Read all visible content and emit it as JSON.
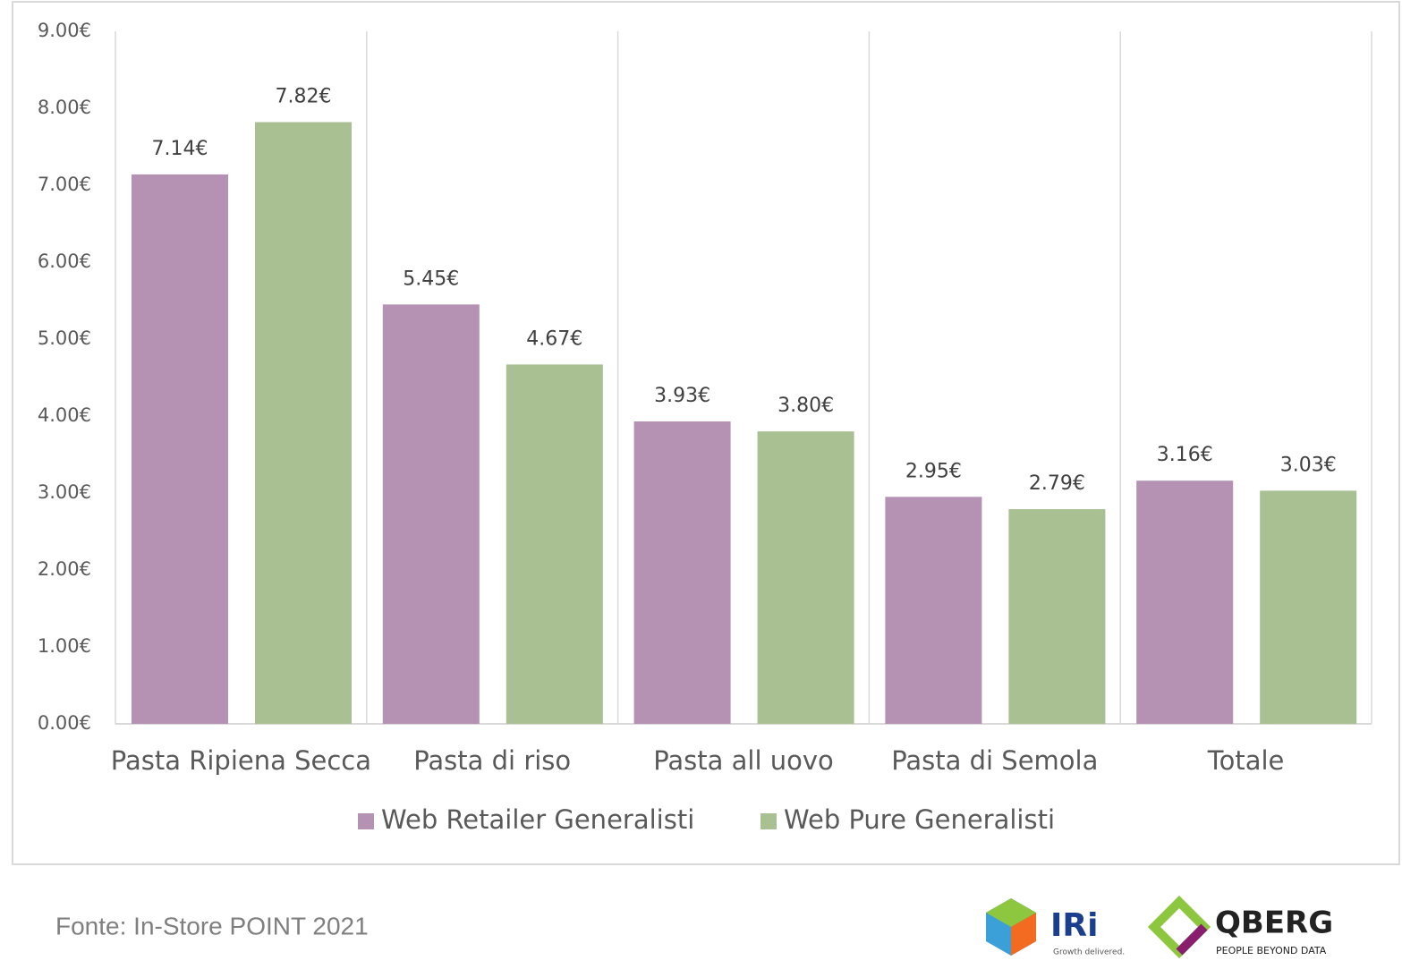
{
  "chart_data": {
    "type": "bar",
    "categories": [
      "Pasta Ripiena Secca",
      "Pasta di riso",
      "Pasta all uovo",
      "Pasta di Semola",
      "Totale"
    ],
    "series": [
      {
        "name": "Web Retailer Generalisti",
        "color": "#b591b3",
        "values": [
          7.14,
          5.45,
          3.93,
          2.95,
          3.16
        ],
        "value_labels": [
          "7.14€",
          "5.45€",
          "3.93€",
          "2.95€",
          "3.16€"
        ]
      },
      {
        "name": "Web Pure Generalisti",
        "color": "#a8c092",
        "values": [
          7.82,
          4.67,
          3.8,
          2.79,
          3.03
        ],
        "value_labels": [
          "7.82€",
          "4.67€",
          "3.80€",
          "2.79€",
          "3.03€"
        ]
      }
    ],
    "ylim": [
      0,
      9
    ],
    "yticks": [
      {
        "value": 0,
        "label": "0.00€"
      },
      {
        "value": 1,
        "label": "1.00€"
      },
      {
        "value": 2,
        "label": "2.00€"
      },
      {
        "value": 3,
        "label": "3.00€"
      },
      {
        "value": 4,
        "label": "4.00€"
      },
      {
        "value": 5,
        "label": "5.00€"
      },
      {
        "value": 6,
        "label": "6.00€"
      },
      {
        "value": 7,
        "label": "7.00€"
      },
      {
        "value": 8,
        "label": "8.00€"
      },
      {
        "value": 9,
        "label": "9.00€"
      }
    ],
    "legend": "bottom",
    "source": "Fonte: In-Store POINT 2021"
  },
  "logos": {
    "iri": "IRi",
    "iri_tagline": "Growth delivered.",
    "qberg": "QBERG",
    "qberg_tagline": "PEOPLE BEYOND DATA"
  }
}
